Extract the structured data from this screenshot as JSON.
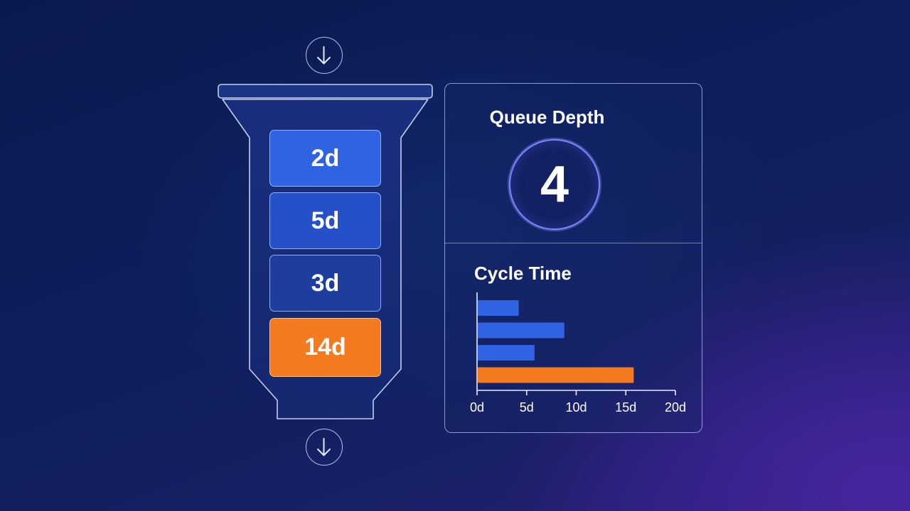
{
  "flow": {
    "in_icon": "arrow-down-icon",
    "out_icon": "arrow-down-icon"
  },
  "queue": {
    "items": [
      "2d",
      "5d",
      "3d",
      "14d"
    ],
    "highlight_color": "#f47a20",
    "item_color": "#2f63e4"
  },
  "metrics": {
    "queue_depth_label": "Queue Depth",
    "queue_depth_value": "4",
    "cycle_time_label": "Cycle Time"
  },
  "chart_data": {
    "type": "bar",
    "orientation": "horizontal",
    "values": [
      4.2,
      8.8,
      5.8,
      15.8
    ],
    "colors": [
      "#2f63e4",
      "#2f63e4",
      "#2f63e4",
      "#f47a20"
    ],
    "xlim": [
      0,
      20
    ],
    "xticks": [
      0,
      5,
      10,
      15,
      20
    ],
    "xtick_labels": [
      "0d",
      "5d",
      "10d",
      "15d",
      "20d"
    ],
    "title": "Cycle Time",
    "grid": false
  }
}
